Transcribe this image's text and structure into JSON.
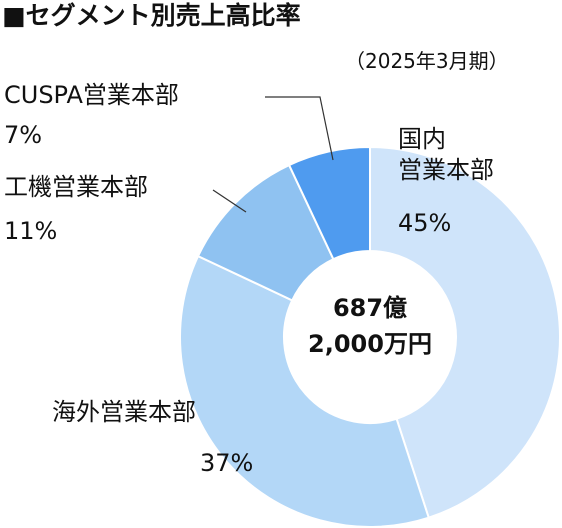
{
  "chart_data": {
    "type": "donut",
    "title": "■セグメント別売上高比率",
    "subtitle": "（2025年3月期）",
    "center_text": "687億\n2,000万円",
    "categories": [
      "国内\n営業本部",
      "海外営業本部",
      "工機営業本部",
      "CUSPA営業本部"
    ],
    "values": [
      45,
      37,
      11,
      7
    ],
    "value_labels": [
      "45%",
      "37%",
      "11%",
      "7%"
    ],
    "colors": [
      "#cfe4fa",
      "#b3d7f7",
      "#8fc2f1",
      "#4f9bef"
    ]
  }
}
